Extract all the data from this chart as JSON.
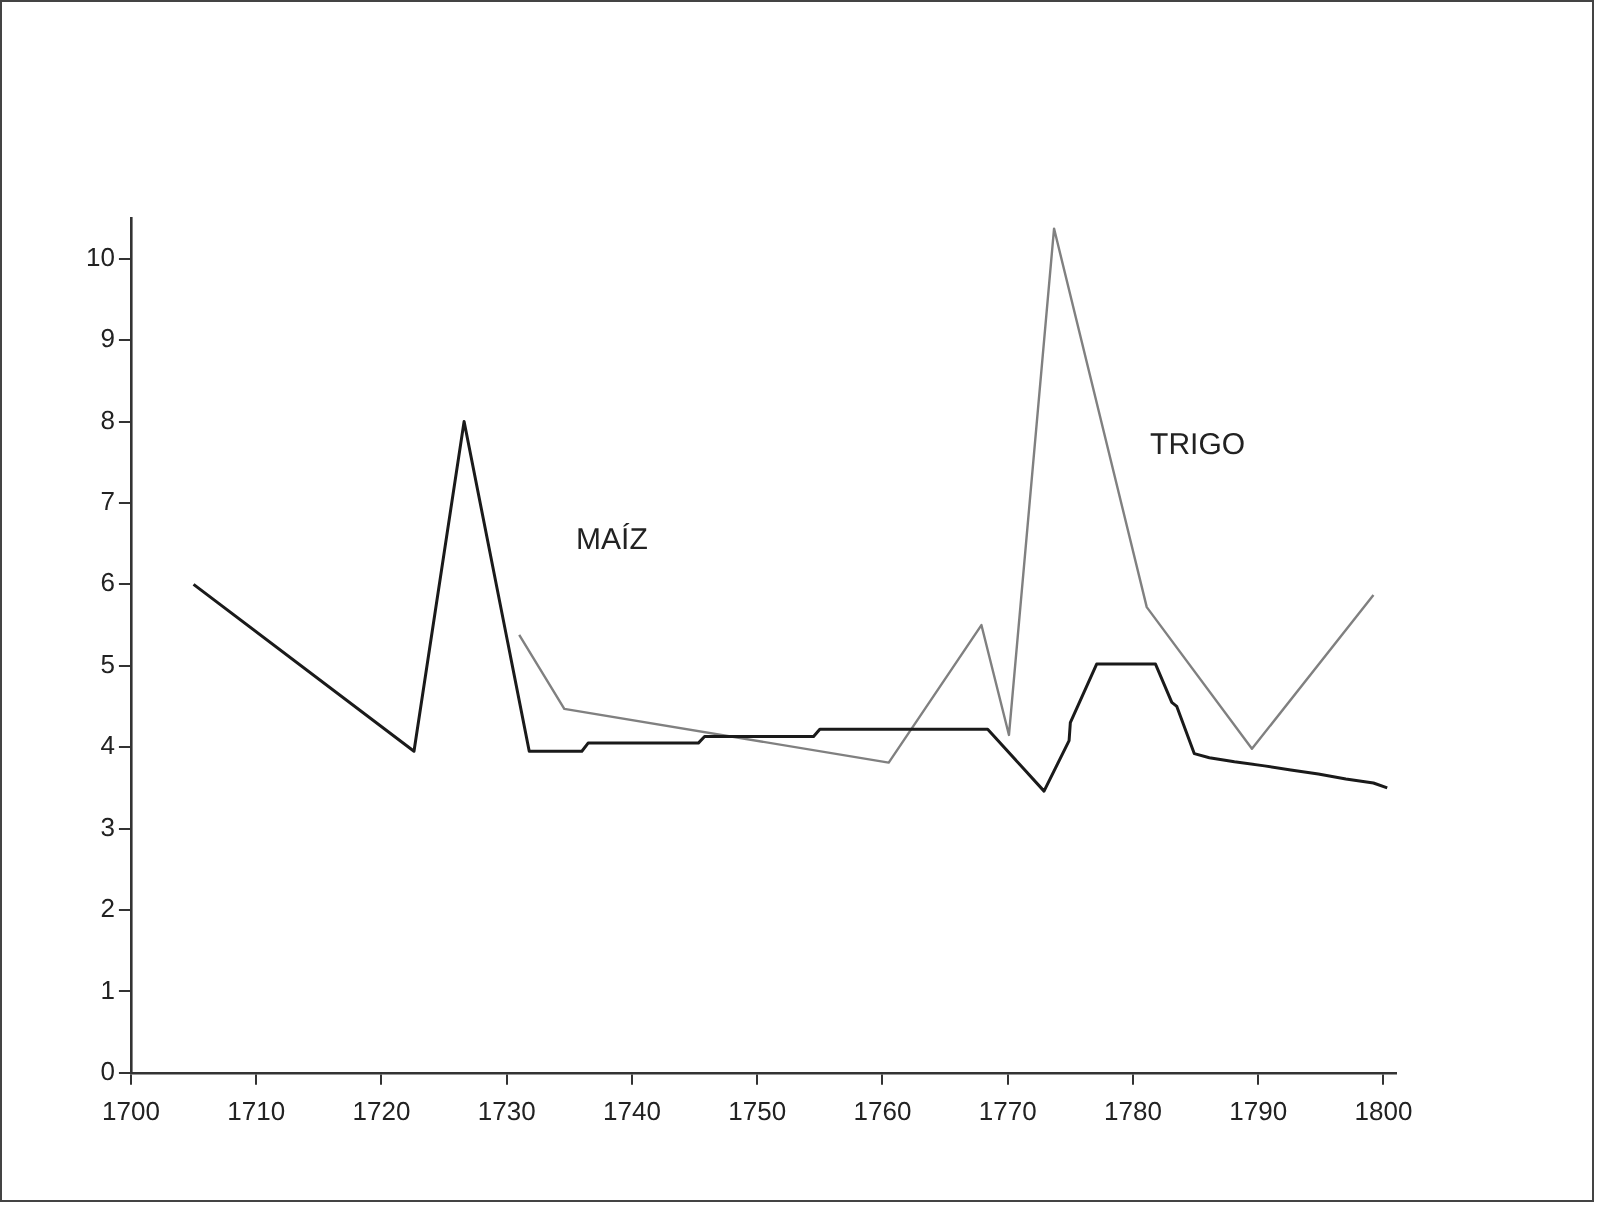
{
  "chart_data": {
    "type": "line",
    "xlim": [
      1700,
      1801
    ],
    "xticks": [
      1700,
      1710,
      1720,
      1730,
      1740,
      1750,
      1760,
      1770,
      1780,
      1790,
      1800
    ],
    "ylim": [
      0,
      10.5
    ],
    "yticks": [
      0,
      1,
      2,
      3,
      4,
      5,
      6,
      7,
      8,
      9,
      10
    ],
    "grid": false,
    "legend": false,
    "marker": "none",
    "line_style": "solid",
    "series": [
      {
        "name": "MAÍZ",
        "color": "#1a1a1a",
        "x": [
          1705,
          1722.6,
          1726.6,
          1731.8,
          1736,
          1736.5,
          1745.3,
          1745.8,
          1754.5,
          1755,
          1768.4,
          1772.9,
          1774.9,
          1775,
          1777.1,
          1781.8,
          1783.1,
          1783.5,
          1784.9,
          1786.1,
          1788.1,
          1790.5,
          1792.6,
          1794.8,
          1797,
          1799.2,
          1800.3
        ],
        "values": [
          6.0,
          3.95,
          8.0,
          3.95,
          3.95,
          4.05,
          4.05,
          4.13,
          4.13,
          4.22,
          4.22,
          3.46,
          4.08,
          4.3,
          5.02,
          5.02,
          4.55,
          4.5,
          3.92,
          3.87,
          3.82,
          3.77,
          3.72,
          3.67,
          3.61,
          3.56,
          3.5
        ]
      },
      {
        "name": "TRIGO",
        "color": "#808080",
        "x": [
          1731,
          1734.6,
          1760.5,
          1767.9,
          1770.1,
          1773.7,
          1781.1,
          1789.5,
          1799.2
        ],
        "values": [
          5.38,
          4.47,
          3.81,
          5.5,
          4.15,
          10.37,
          5.72,
          3.98,
          5.87
        ]
      }
    ]
  }
}
